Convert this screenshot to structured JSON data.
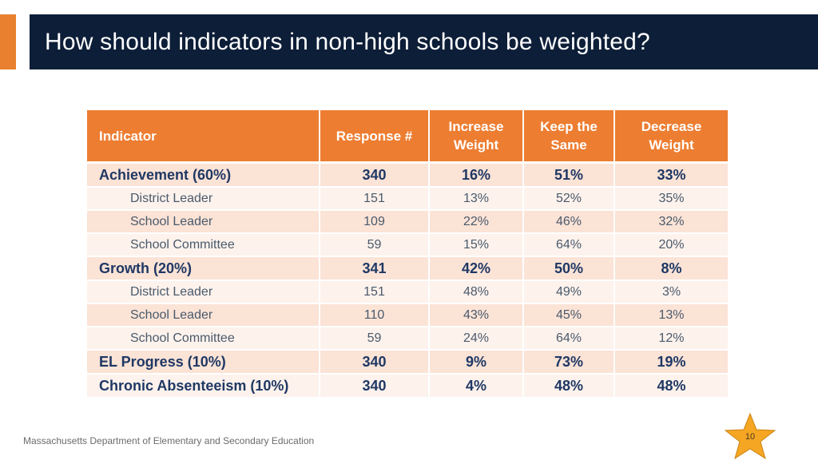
{
  "slide": {
    "title": "How should indicators in non-high schools be weighted?",
    "footer": "Massachusetts Department of Elementary and Secondary Education",
    "page_number": "10"
  },
  "table": {
    "headers": [
      "Indicator",
      "Response #",
      "Increase Weight",
      "Keep the Same",
      "Decrease Weight"
    ],
    "rows": [
      {
        "label": "Achievement (60%)",
        "response": "340",
        "increase": "16%",
        "keep": "51%",
        "decrease": "33%",
        "bold": true
      },
      {
        "label": "District Leader",
        "response": "151",
        "increase": "13%",
        "keep": "52%",
        "decrease": "35%",
        "bold": false
      },
      {
        "label": "School Leader",
        "response": "109",
        "increase": "22%",
        "keep": "46%",
        "decrease": "32%",
        "bold": false
      },
      {
        "label": "School Committee",
        "response": "59",
        "increase": "15%",
        "keep": "64%",
        "decrease": "20%",
        "bold": false
      },
      {
        "label": "Growth (20%)",
        "response": "341",
        "increase": "42%",
        "keep": "50%",
        "decrease": "8%",
        "bold": true
      },
      {
        "label": "District Leader",
        "response": "151",
        "increase": "48%",
        "keep": "49%",
        "decrease": "3%",
        "bold": false
      },
      {
        "label": "School Leader",
        "response": "110",
        "increase": "43%",
        "keep": "45%",
        "decrease": "13%",
        "bold": false
      },
      {
        "label": "School Committee",
        "response": "59",
        "increase": "24%",
        "keep": "64%",
        "decrease": "12%",
        "bold": false
      },
      {
        "label": "EL Progress (10%)",
        "response": "340",
        "increase": "9%",
        "keep": "73%",
        "decrease": "19%",
        "bold": true
      },
      {
        "label": "Chronic Absenteeism (10%)",
        "response": "340",
        "increase": "4%",
        "keep": "48%",
        "decrease": "48%",
        "bold": true
      }
    ]
  },
  "colors": {
    "title_bar": "#0d1e38",
    "accent": "#e8802f",
    "header_fill": "#ed7d31",
    "row_dark": "#fbe3d6",
    "row_light": "#fdf2ec",
    "bold_text": "#1f3864",
    "star": "#f5a623"
  }
}
